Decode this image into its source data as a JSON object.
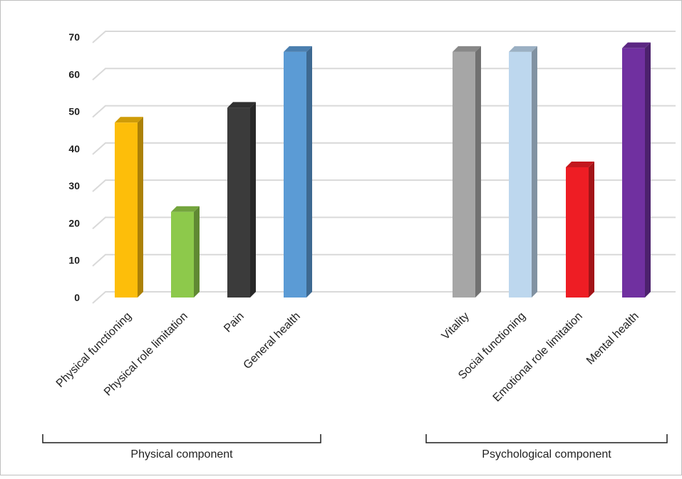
{
  "chart_data": {
    "type": "bar",
    "categories": [
      "Physical functioning",
      "Physical role limitation",
      "Pain",
      "General health",
      "Vitality",
      "Social functioning",
      "Emotional role limitation",
      "Mental health"
    ],
    "values": [
      47,
      23,
      51,
      66,
      66,
      66,
      35,
      67
    ],
    "colors": [
      "#FDBE0A",
      "#8DC94B",
      "#3B3B3B",
      "#5B9BD5",
      "#A6A6A6",
      "#BDD7EE",
      "#EE1D24",
      "#7030A0"
    ],
    "ylim": [
      0,
      70
    ],
    "yticks": [
      "0",
      "10",
      "20",
      "30",
      "40",
      "50",
      "60",
      "70"
    ],
    "grid": true,
    "groups": [
      {
        "label": "Physical component",
        "categories": [
          "Physical functioning",
          "Physical role limitation",
          "Pain",
          "General health"
        ]
      },
      {
        "label": "Psychological component",
        "categories": [
          "Vitality",
          "Social functioning",
          "Emotional role limitation",
          "Mental health"
        ]
      }
    ]
  }
}
